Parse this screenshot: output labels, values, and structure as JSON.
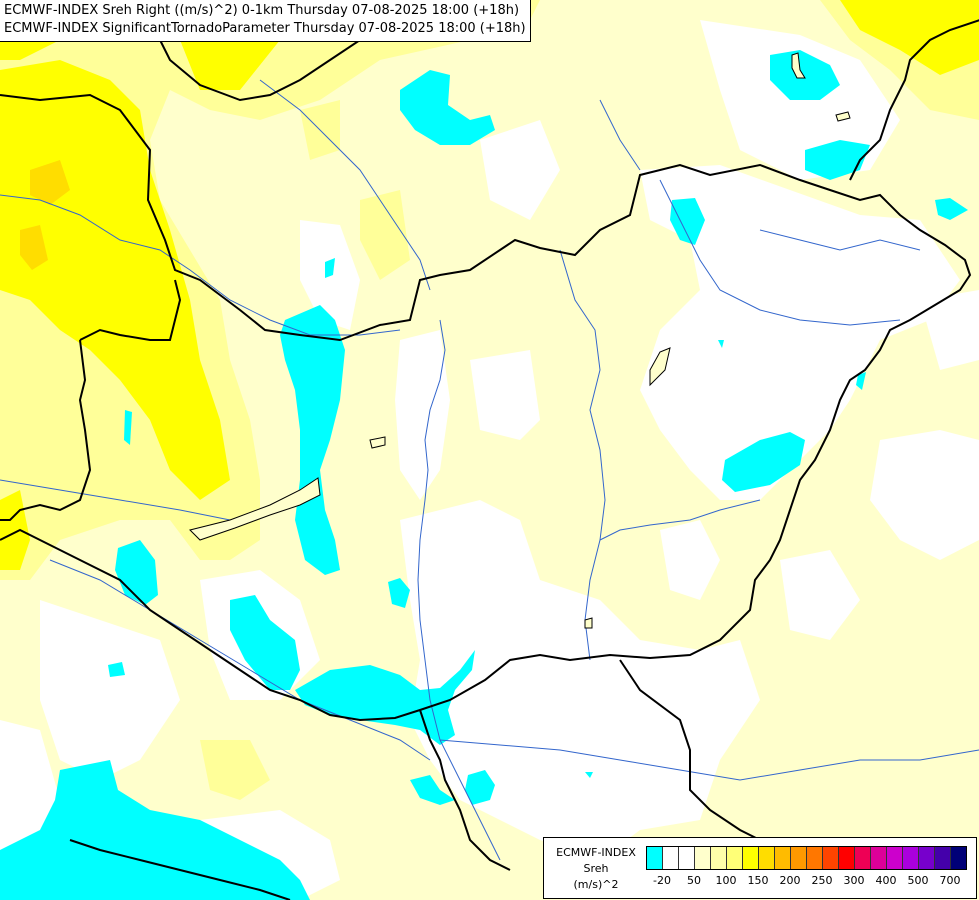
{
  "title": {
    "line1": "ECMWF-INDEX Sreh Right ((m/s)^2) 0-1km Thursday 07-08-2025 18:00 (+18h)",
    "line2": "ECMWF-INDEX SignificantTornadoParameter Thursday 07-08-2025 18:00 (+18h)"
  },
  "legend": {
    "model": "ECMWF-INDEX",
    "variable": "Sreh",
    "unit": "(m/s)^2",
    "colors": [
      "#00ffff",
      "#ffffff",
      "#ffffff",
      "#ffffcc",
      "#ffffaa",
      "#ffff77",
      "#ffff00",
      "#ffdd00",
      "#ffbb00",
      "#ff9900",
      "#ff7700",
      "#ff4400",
      "#ff0000",
      "#ee0055",
      "#dd0099",
      "#cc00cc",
      "#aa00dd",
      "#7700cc",
      "#4400aa",
      "#000077"
    ],
    "ticks": [
      "-20",
      "50",
      "100",
      "150",
      "200",
      "250",
      "300",
      "400",
      "500",
      "700"
    ]
  },
  "colors": {
    "cyan": "#00ffff",
    "pale_yellow": "#ffffcc",
    "light_yellow": "#ffff88",
    "yellow": "#ffff00",
    "gold": "#ffdd00",
    "border": "#000000",
    "river": "#3366cc"
  }
}
